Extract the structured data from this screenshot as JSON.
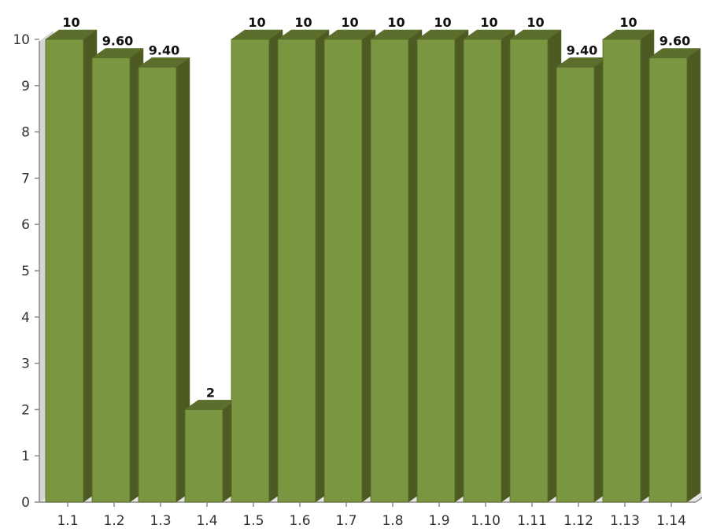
{
  "chart_data": {
    "type": "bar",
    "categories": [
      "1.1",
      "1.2",
      "1.3",
      "1.4",
      "1.5",
      "1.6",
      "1.7",
      "1.8",
      "1.9",
      "1.10",
      "1.11",
      "1.12",
      "1.13",
      "1.14"
    ],
    "values": [
      10,
      9.6,
      9.4,
      2,
      10,
      10,
      10,
      10,
      10,
      10,
      10,
      9.4,
      10,
      9.6
    ],
    "value_labels": [
      "10",
      "9.60",
      "9.40",
      "2",
      "10",
      "10",
      "10",
      "10",
      "10",
      "10",
      "10",
      "9.40",
      "10",
      "9.60"
    ],
    "y_ticks": [
      "0",
      "1",
      "2",
      "3",
      "4",
      "5",
      "6",
      "7",
      "8",
      "9",
      "10"
    ],
    "ylim": [
      0,
      10
    ],
    "title": "",
    "xlabel": "",
    "ylabel": "",
    "style": "3d",
    "colors": {
      "bar_front": "#7a9640",
      "bar_top": "#5b6e2c",
      "bar_side": "#4d5b22",
      "bar_edge": "#55662a",
      "axis": "#8a8a8a",
      "wall": "#d5d5d5",
      "label": "#111111",
      "tick_text": "#333333"
    }
  }
}
